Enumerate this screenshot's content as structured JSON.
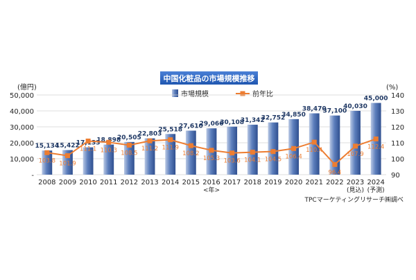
{
  "chart_data": {
    "type": "bar",
    "title": "中国化粧品の市場規模推移",
    "categories": [
      "2008",
      "2009",
      "2010",
      "2011",
      "2012",
      "2013",
      "2014",
      "2015",
      "2016",
      "2017",
      "2018",
      "2019",
      "2020",
      "2021",
      "2022",
      "2023",
      "2024"
    ],
    "category_sublabels": {
      "2016": "<年>",
      "2023": "(見込)",
      "2024": "(予測)"
    },
    "y_left": {
      "unit": "(億円)",
      "ylim": [
        0,
        50000
      ],
      "ticks": [
        "-",
        "10,000",
        "20,000",
        "30,000",
        "40,000",
        "50,000"
      ]
    },
    "y_right": {
      "unit": "(%)",
      "ylim": [
        90,
        140
      ],
      "ticks": [
        "90",
        "100",
        "110",
        "120",
        "130",
        "140"
      ]
    },
    "grid": true,
    "legend": {
      "position": "top-center"
    },
    "series": [
      {
        "name": "市場規模",
        "type": "bar",
        "axis": "left",
        "color": "#3a5fa6",
        "values": [
          15134,
          15422,
          17133,
          18898,
          20505,
          22803,
          25518,
          27610,
          29066,
          30108,
          31342,
          32752,
          34850,
          38470,
          37100,
          40030,
          45000
        ],
        "labels": [
          "15,134",
          "15,422",
          "17,133",
          "18,898",
          "20,505",
          "22,803",
          "25,518",
          "27,610",
          "29,066",
          "30,108",
          "31,342",
          "32,752",
          "34,850",
          "38,470",
          "37,100",
          "40,030",
          "45,000"
        ]
      },
      {
        "name": "前年比",
        "type": "line",
        "axis": "right",
        "color": "#ed7d31",
        "values": [
          103.8,
          101.9,
          111.1,
          110.3,
          108.5,
          111.2,
          111.9,
          108.2,
          105.3,
          103.6,
          104.1,
          104.5,
          106.4,
          110.4,
          96.4,
          107.9,
          112.4
        ],
        "labels": [
          "103.8",
          "101.9",
          "111.1",
          "110.3",
          "108.5",
          "111.2",
          "111.9",
          "108.2",
          "105.3",
          "103.6",
          "104.1",
          "104.5",
          "106.4",
          "110.4",
          "96.4",
          "107.9",
          "112.4"
        ]
      }
    ],
    "source_note": "TPCマーケティングリサーチ㈱調べ"
  }
}
